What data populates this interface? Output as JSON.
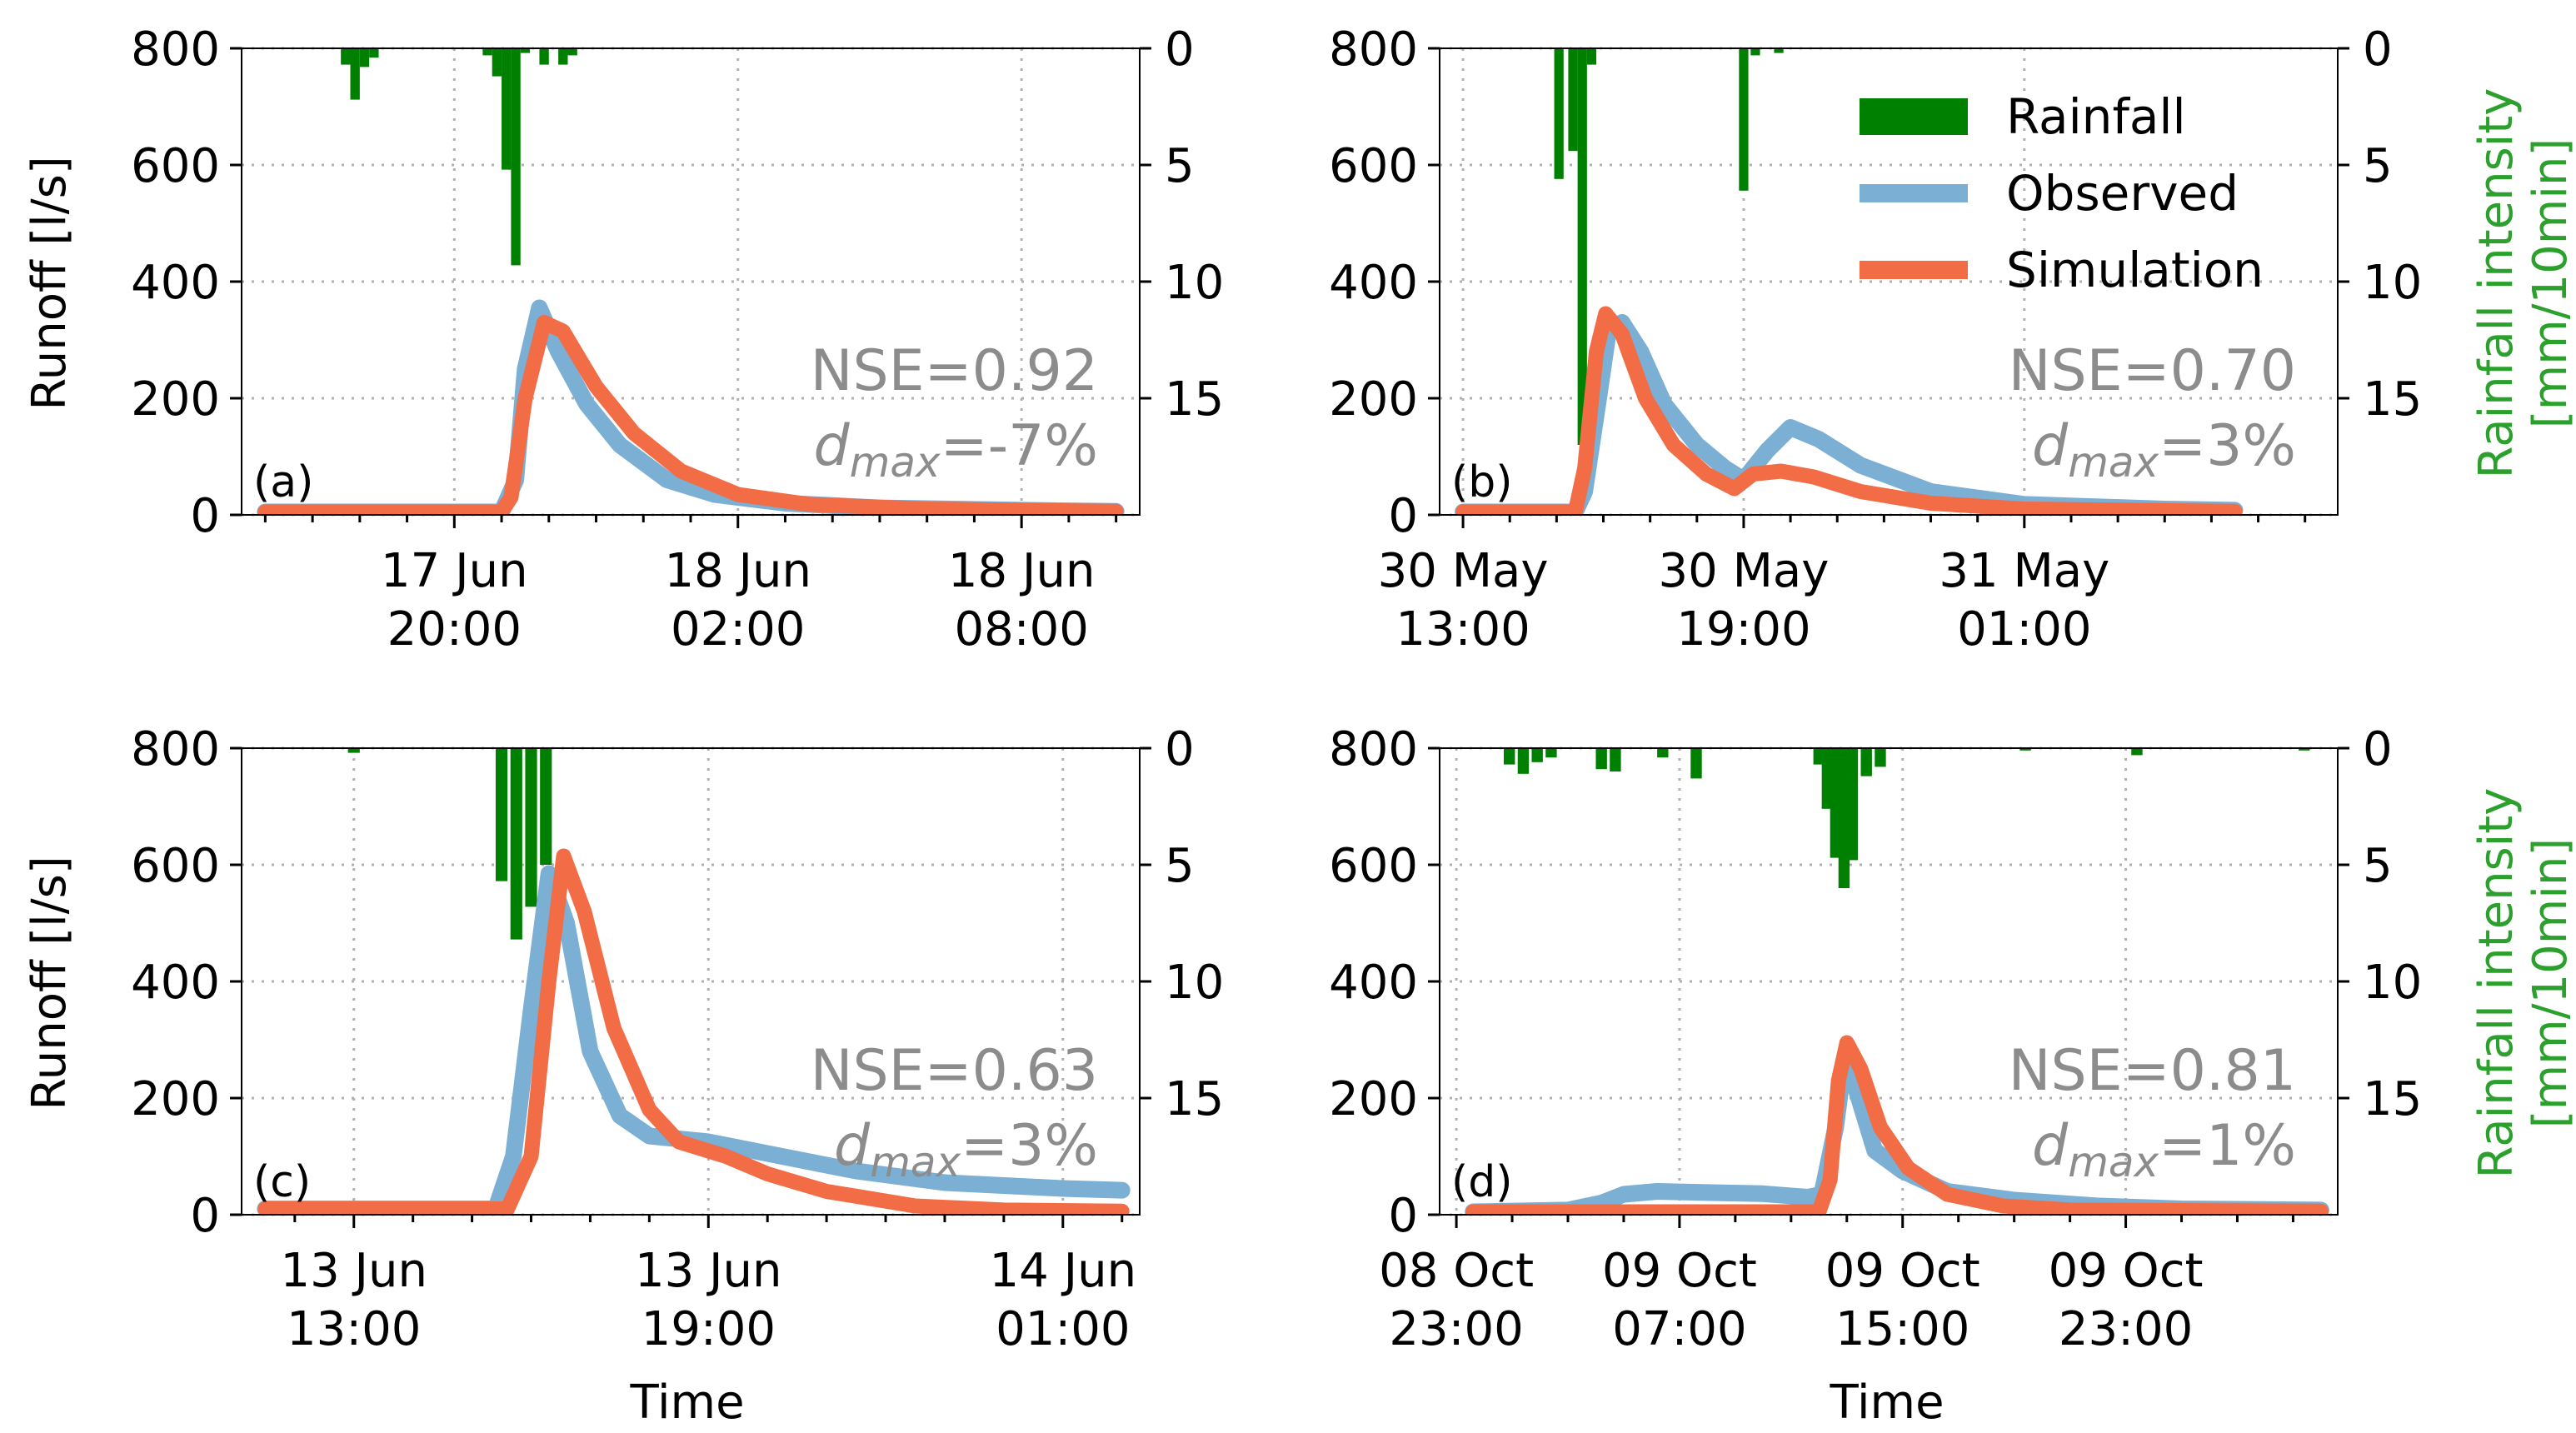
{
  "colors": {
    "rainfall": "#008000",
    "observed": "#7bafd4",
    "simulation": "#f26c45",
    "stats": "#8c8c8c",
    "rain_axis_title": "#2ca02c",
    "grid": "#b0b0b0"
  },
  "legend": {
    "rainfall": "Rainfall",
    "observed": "Observed",
    "simulation": "Simulation"
  },
  "labels": {
    "runoff_axis": "Runoff [l/s]",
    "rain_axis_line1": "Rainfall intensity",
    "rain_axis_line2": "[mm/10min]",
    "time_axis": "Time",
    "stat_nse_prefix": "NSE=",
    "stat_d": "d",
    "stat_max_subscript": "max",
    "stat_eq": "="
  },
  "chart_data": [
    {
      "type": "line",
      "panel": "(a)",
      "nse": "0.92",
      "dmax": "-7%",
      "xlim": [
        -4.5,
        14.5
      ],
      "major_ticks": [
        {
          "x": 0,
          "line1": "17 Jun",
          "line2": "20:00"
        },
        {
          "x": 6,
          "line1": "18 Jun",
          "line2": "02:00"
        },
        {
          "x": 12,
          "line1": "18 Jun",
          "line2": "08:00"
        }
      ],
      "ylim": [
        0,
        800
      ],
      "yticks": [
        0,
        200,
        400,
        600,
        800
      ],
      "rain_ylim": [
        20,
        0
      ],
      "rain_ticks": [
        0,
        5,
        10,
        15
      ],
      "rainfall": [
        {
          "t": -2.3,
          "v": 0.7
        },
        {
          "t": -2.1,
          "v": 2.2
        },
        {
          "t": -1.9,
          "v": 0.8
        },
        {
          "t": -1.7,
          "v": 0.4
        },
        {
          "t": 0.7,
          "v": 0.3
        },
        {
          "t": 0.9,
          "v": 1.2
        },
        {
          "t": 1.1,
          "v": 5.2
        },
        {
          "t": 1.3,
          "v": 9.3
        },
        {
          "t": 1.5,
          "v": 0.2
        },
        {
          "t": 1.9,
          "v": 0.7
        },
        {
          "t": 2.3,
          "v": 0.7
        },
        {
          "t": 2.5,
          "v": 0.3
        }
      ],
      "observed": [
        {
          "t": -4,
          "v": 5
        },
        {
          "t": 1.0,
          "v": 5
        },
        {
          "t": 1.3,
          "v": 60
        },
        {
          "t": 1.5,
          "v": 250
        },
        {
          "t": 1.8,
          "v": 355
        },
        {
          "t": 2.2,
          "v": 280
        },
        {
          "t": 2.8,
          "v": 190
        },
        {
          "t": 3.5,
          "v": 120
        },
        {
          "t": 4.5,
          "v": 60
        },
        {
          "t": 5.5,
          "v": 35
        },
        {
          "t": 7,
          "v": 20
        },
        {
          "t": 9,
          "v": 12
        },
        {
          "t": 12,
          "v": 8
        },
        {
          "t": 14,
          "v": 6
        }
      ],
      "simulation": [
        {
          "t": -4,
          "v": 5
        },
        {
          "t": 1.0,
          "v": 5
        },
        {
          "t": 1.2,
          "v": 30
        },
        {
          "t": 1.5,
          "v": 200
        },
        {
          "t": 1.9,
          "v": 330
        },
        {
          "t": 2.3,
          "v": 315
        },
        {
          "t": 3.0,
          "v": 220
        },
        {
          "t": 3.8,
          "v": 140
        },
        {
          "t": 4.8,
          "v": 75
        },
        {
          "t": 6,
          "v": 35
        },
        {
          "t": 7.5,
          "v": 18
        },
        {
          "t": 10,
          "v": 10
        },
        {
          "t": 14,
          "v": 6
        }
      ]
    },
    {
      "type": "line",
      "panel": "(b)",
      "nse": "0.70",
      "dmax": "3%",
      "xlim": [
        -0.5,
        18.7
      ],
      "major_ticks": [
        {
          "x": 0,
          "line1": "30 May",
          "line2": "13:00"
        },
        {
          "x": 6,
          "line1": "30 May",
          "line2": "19:00"
        },
        {
          "x": 12,
          "line1": "31 May",
          "line2": "01:00"
        }
      ],
      "ylim": [
        0,
        800
      ],
      "yticks": [
        0,
        200,
        400,
        600,
        800
      ],
      "rain_ylim": [
        20,
        0
      ],
      "rain_ticks": [
        0,
        5,
        10,
        15
      ],
      "rainfall": [
        {
          "t": 2.05,
          "v": 5.6
        },
        {
          "t": 2.35,
          "v": 4.4
        },
        {
          "t": 2.55,
          "v": 17.0
        },
        {
          "t": 2.75,
          "v": 0.7
        },
        {
          "t": 6.0,
          "v": 6.1
        },
        {
          "t": 6.25,
          "v": 0.3
        },
        {
          "t": 6.75,
          "v": 0.2
        }
      ],
      "observed": [
        {
          "t": 0,
          "v": 5
        },
        {
          "t": 2.4,
          "v": 5
        },
        {
          "t": 2.6,
          "v": 40
        },
        {
          "t": 2.9,
          "v": 200
        },
        {
          "t": 3.1,
          "v": 310
        },
        {
          "t": 3.4,
          "v": 330
        },
        {
          "t": 3.8,
          "v": 280
        },
        {
          "t": 4.3,
          "v": 190
        },
        {
          "t": 5.0,
          "v": 120
        },
        {
          "t": 5.6,
          "v": 80
        },
        {
          "t": 6.0,
          "v": 60
        },
        {
          "t": 6.5,
          "v": 110
        },
        {
          "t": 7.0,
          "v": 150
        },
        {
          "t": 7.6,
          "v": 130
        },
        {
          "t": 8.5,
          "v": 85
        },
        {
          "t": 10,
          "v": 40
        },
        {
          "t": 12,
          "v": 18
        },
        {
          "t": 15,
          "v": 10
        },
        {
          "t": 16.5,
          "v": 8
        }
      ],
      "simulation": [
        {
          "t": 0,
          "v": 5
        },
        {
          "t": 2.4,
          "v": 5
        },
        {
          "t": 2.6,
          "v": 80
        },
        {
          "t": 2.85,
          "v": 280
        },
        {
          "t": 3.05,
          "v": 345
        },
        {
          "t": 3.4,
          "v": 310
        },
        {
          "t": 3.9,
          "v": 200
        },
        {
          "t": 4.5,
          "v": 120
        },
        {
          "t": 5.2,
          "v": 70
        },
        {
          "t": 5.8,
          "v": 45
        },
        {
          "t": 6.2,
          "v": 70
        },
        {
          "t": 6.8,
          "v": 75
        },
        {
          "t": 7.5,
          "v": 65
        },
        {
          "t": 8.5,
          "v": 40
        },
        {
          "t": 10,
          "v": 20
        },
        {
          "t": 12,
          "v": 10
        },
        {
          "t": 16.5,
          "v": 6
        }
      ]
    },
    {
      "type": "line",
      "panel": "(c)",
      "nse": "0.63",
      "dmax": "3%",
      "xlim": [
        -1.9,
        13.3
      ],
      "major_ticks": [
        {
          "x": 0,
          "line1": "13 Jun",
          "line2": "13:00"
        },
        {
          "x": 6,
          "line1": "13 Jun",
          "line2": "19:00"
        },
        {
          "x": 12,
          "line1": "14 Jun",
          "line2": "01:00"
        }
      ],
      "ylim": [
        0,
        800
      ],
      "yticks": [
        0,
        200,
        400,
        600,
        800
      ],
      "rain_ylim": [
        20,
        0
      ],
      "rain_ticks": [
        0,
        5,
        10,
        15
      ],
      "rainfall": [
        {
          "t": 0.0,
          "v": 0.2
        },
        {
          "t": 2.5,
          "v": 5.7
        },
        {
          "t": 2.75,
          "v": 8.2
        },
        {
          "t": 3.0,
          "v": 6.8
        },
        {
          "t": 3.25,
          "v": 5.0
        }
      ],
      "observed": [
        {
          "t": -1.5,
          "v": 10
        },
        {
          "t": 2.4,
          "v": 10
        },
        {
          "t": 2.7,
          "v": 100
        },
        {
          "t": 3.0,
          "v": 350
        },
        {
          "t": 3.3,
          "v": 585
        },
        {
          "t": 3.6,
          "v": 500
        },
        {
          "t": 4.0,
          "v": 280
        },
        {
          "t": 4.5,
          "v": 170
        },
        {
          "t": 5.0,
          "v": 135
        },
        {
          "t": 6.0,
          "v": 125
        },
        {
          "t": 7.0,
          "v": 105
        },
        {
          "t": 8.5,
          "v": 75
        },
        {
          "t": 10,
          "v": 55
        },
        {
          "t": 12,
          "v": 45
        },
        {
          "t": 13,
          "v": 42
        }
      ],
      "simulation": [
        {
          "t": -1.5,
          "v": 10
        },
        {
          "t": 2.6,
          "v": 10
        },
        {
          "t": 3.0,
          "v": 100
        },
        {
          "t": 3.3,
          "v": 400
        },
        {
          "t": 3.55,
          "v": 615
        },
        {
          "t": 3.9,
          "v": 520
        },
        {
          "t": 4.4,
          "v": 320
        },
        {
          "t": 5.0,
          "v": 180
        },
        {
          "t": 5.5,
          "v": 125
        },
        {
          "t": 6.3,
          "v": 100
        },
        {
          "t": 7.0,
          "v": 70
        },
        {
          "t": 8.0,
          "v": 40
        },
        {
          "t": 9.5,
          "v": 15
        },
        {
          "t": 11,
          "v": 8
        },
        {
          "t": 13,
          "v": 6
        }
      ]
    },
    {
      "type": "line",
      "panel": "(d)",
      "nse": "0.81",
      "dmax": "1%",
      "xlim": [
        -0.3,
        15.8
      ],
      "major_ticks": [
        {
          "x": 0,
          "line1": "08 Oct",
          "line2": "23:00"
        },
        {
          "x": 4,
          "line1": "09 Oct",
          "line2": "07:00"
        },
        {
          "x": 8,
          "line1": "09 Oct",
          "line2": "15:00"
        },
        {
          "x": 12,
          "line1": "09 Oct",
          "line2": "23:00"
        }
      ],
      "ylim": [
        0,
        800
      ],
      "yticks": [
        0,
        200,
        400,
        600,
        800
      ],
      "rain_ylim": [
        20,
        0
      ],
      "rain_ticks": [
        0,
        5,
        10,
        15
      ],
      "rainfall": [
        {
          "t": 0.95,
          "v": 0.7
        },
        {
          "t": 1.2,
          "v": 1.1
        },
        {
          "t": 1.45,
          "v": 0.6
        },
        {
          "t": 1.7,
          "v": 0.4
        },
        {
          "t": 2.6,
          "v": 0.9
        },
        {
          "t": 2.85,
          "v": 1.0
        },
        {
          "t": 3.7,
          "v": 0.4
        },
        {
          "t": 4.3,
          "v": 1.3
        },
        {
          "t": 6.5,
          "v": 0.7
        },
        {
          "t": 6.65,
          "v": 2.6
        },
        {
          "t": 6.8,
          "v": 4.7
        },
        {
          "t": 6.95,
          "v": 6.0
        },
        {
          "t": 7.1,
          "v": 4.8
        },
        {
          "t": 7.35,
          "v": 1.2
        },
        {
          "t": 7.6,
          "v": 0.8
        },
        {
          "t": 10.2,
          "v": 0.1
        },
        {
          "t": 12.2,
          "v": 0.3
        },
        {
          "t": 15.2,
          "v": 0.1
        }
      ],
      "observed": [
        {
          "t": 0.3,
          "v": 5
        },
        {
          "t": 2.0,
          "v": 8
        },
        {
          "t": 2.6,
          "v": 20
        },
        {
          "t": 3.0,
          "v": 35
        },
        {
          "t": 3.6,
          "v": 40
        },
        {
          "t": 4.5,
          "v": 38
        },
        {
          "t": 5.5,
          "v": 36
        },
        {
          "t": 6.3,
          "v": 30
        },
        {
          "t": 6.55,
          "v": 35
        },
        {
          "t": 6.8,
          "v": 150
        },
        {
          "t": 6.95,
          "v": 260
        },
        {
          "t": 7.15,
          "v": 220
        },
        {
          "t": 7.5,
          "v": 110
        },
        {
          "t": 8.0,
          "v": 75
        },
        {
          "t": 8.8,
          "v": 40
        },
        {
          "t": 10,
          "v": 25
        },
        {
          "t": 11.5,
          "v": 15
        },
        {
          "t": 13,
          "v": 10
        },
        {
          "t": 15.5,
          "v": 8
        }
      ],
      "simulation": [
        {
          "t": 0.3,
          "v": 5
        },
        {
          "t": 6.5,
          "v": 5
        },
        {
          "t": 6.7,
          "v": 60
        },
        {
          "t": 6.85,
          "v": 230
        },
        {
          "t": 7.0,
          "v": 295
        },
        {
          "t": 7.25,
          "v": 250
        },
        {
          "t": 7.6,
          "v": 150
        },
        {
          "t": 8.1,
          "v": 80
        },
        {
          "t": 8.8,
          "v": 35
        },
        {
          "t": 9.8,
          "v": 15
        },
        {
          "t": 11,
          "v": 8
        },
        {
          "t": 15.5,
          "v": 6
        }
      ]
    }
  ]
}
